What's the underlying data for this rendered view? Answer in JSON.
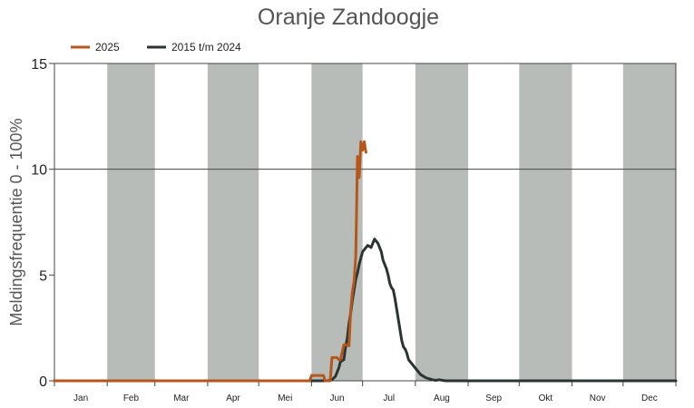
{
  "chart_data": {
    "type": "line",
    "title": "Oranje Zandoogje",
    "ylabel": "Meldingsfrequentie 0 - 100%",
    "xlabel": "",
    "ylim": [
      0,
      15
    ],
    "yticks": [
      0,
      5,
      10,
      15
    ],
    "xlim": [
      0,
      365
    ],
    "months": [
      "Jan",
      "Feb",
      "Mar",
      "Apr",
      "Mei",
      "Jun",
      "Jul",
      "Aug",
      "Sep",
      "Okt",
      "Nov",
      "Dec"
    ],
    "month_starts": [
      0,
      31,
      59,
      90,
      120,
      151,
      181,
      212,
      243,
      273,
      304,
      334,
      365
    ],
    "shaded_months": [
      1,
      3,
      5,
      7,
      9,
      11
    ],
    "grid": "horizontal line at 10",
    "legend_position": "top-left",
    "series": [
      {
        "name": "2025",
        "color": "#b5561c",
        "x": [
          0,
          150,
          151,
          153,
          158,
          159,
          162,
          163,
          166,
          167,
          168,
          170,
          171,
          172,
          173,
          174,
          175,
          176,
          177,
          178,
          179,
          180,
          181,
          182,
          182.5,
          183
        ],
        "y": [
          0,
          0,
          0.25,
          0.25,
          0.25,
          0,
          0,
          1.1,
          1.1,
          1.0,
          1.0,
          1.7,
          1.7,
          1.7,
          1.65,
          3.3,
          4.2,
          4.7,
          5.9,
          10.6,
          9.6,
          11.3,
          10.9,
          11.3,
          11.0,
          10.8
        ]
      },
      {
        "name": "2015 t/m 2024",
        "color": "#2a3532",
        "x": [
          0,
          160,
          163,
          165,
          167,
          168,
          170,
          171,
          172,
          173,
          174,
          175,
          176,
          177,
          178,
          179,
          180,
          181,
          182,
          184,
          186,
          188,
          190,
          191,
          192,
          193,
          194,
          195,
          196,
          197,
          198,
          199,
          200,
          201,
          202,
          203,
          204,
          205,
          206,
          207,
          208,
          209,
          210,
          211,
          212,
          213,
          214,
          215,
          216,
          217,
          218,
          220,
          222,
          224,
          226,
          228,
          230,
          232,
          234,
          236,
          240,
          365
        ],
        "y": [
          0,
          0,
          0.05,
          0.2,
          0.6,
          0.9,
          1.0,
          1.6,
          2.0,
          2.7,
          3.2,
          3.8,
          4.3,
          4.8,
          5.1,
          5.5,
          5.8,
          6.1,
          6.2,
          6.4,
          6.3,
          6.7,
          6.5,
          6.3,
          6.1,
          5.7,
          5.5,
          5.3,
          5.0,
          4.6,
          4.4,
          4.3,
          3.9,
          3.4,
          2.9,
          2.4,
          1.9,
          1.6,
          1.5,
          1.3,
          1.0,
          0.9,
          0.8,
          0.7,
          0.6,
          0.5,
          0.4,
          0.3,
          0.25,
          0.2,
          0.15,
          0.1,
          0.05,
          0.02,
          0.05,
          0.02,
          0.0,
          0.0,
          0.0,
          0.0,
          0.0,
          0.0
        ]
      }
    ]
  }
}
